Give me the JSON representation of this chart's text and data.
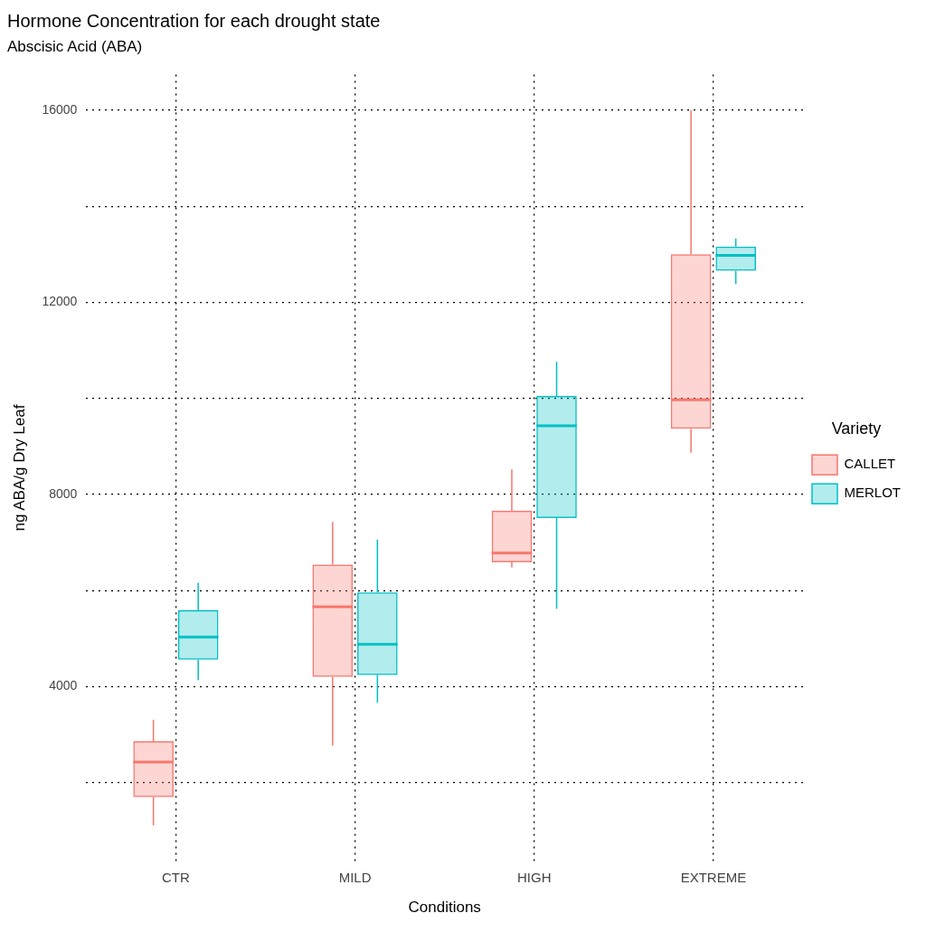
{
  "chart_data": {
    "type": "box",
    "title": "Hormone Concentration for each drought state",
    "subtitle": "Abscisic Acid (ABA)",
    "xlabel": "Conditions",
    "ylabel": "ng ABA/g Dry Leaf",
    "legend_title": "Variety",
    "legend": "right",
    "grid": true,
    "categories": [
      "CTR",
      "MILD",
      "HIGH",
      "EXTREME"
    ],
    "ylim": [
      365,
      16745
    ],
    "yticks": [
      {
        "value": 2000,
        "label": null
      },
      4000,
      {
        "value": 6000,
        "label": null
      },
      8000,
      {
        "value": 10000,
        "label": null
      },
      12000,
      {
        "value": 14000,
        "label": null
      },
      16000
    ],
    "series": [
      {
        "name": "CALLET",
        "color": "#f8766d",
        "boxes": [
          {
            "low": 1110,
            "q1": 1700,
            "median": 2430,
            "q3": 2860,
            "high": 3310
          },
          {
            "low": 2770,
            "q1": 4200,
            "median": 5660,
            "q3": 6540,
            "high": 7430
          },
          {
            "low": 6480,
            "q1": 6590,
            "median": 6780,
            "q3": 7660,
            "high": 8520
          },
          {
            "low": 8870,
            "q1": 9370,
            "median": 9970,
            "q3": 13000,
            "high": 16000
          }
        ]
      },
      {
        "name": "MERLOT",
        "color": "#00bfc4",
        "boxes": [
          {
            "low": 4130,
            "q1": 4560,
            "median": 5030,
            "q3": 5590,
            "high": 6160
          },
          {
            "low": 3660,
            "q1": 4240,
            "median": 4880,
            "q3": 5960,
            "high": 7060
          },
          {
            "low": 5620,
            "q1": 7510,
            "median": 9430,
            "q3": 10050,
            "high": 10760
          },
          {
            "low": 12380,
            "q1": 12660,
            "median": 12980,
            "q3": 13160,
            "high": 13330
          }
        ]
      }
    ]
  }
}
